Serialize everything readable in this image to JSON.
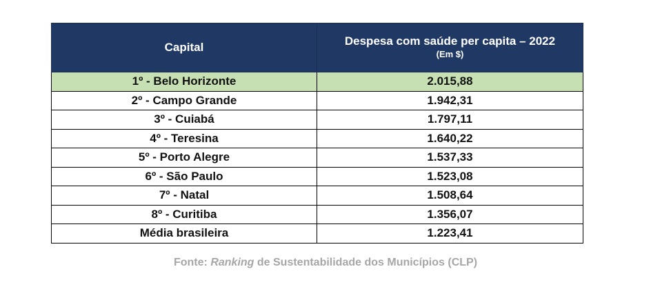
{
  "table": {
    "header": {
      "col1": "Capital",
      "col2": "Despesa com saúde per capita – 2022",
      "col2_sub": "(Em $)"
    },
    "rows": [
      {
        "capital": "1º - Belo Horizonte",
        "value": "2.015,88",
        "highlight": true
      },
      {
        "capital": "2º - Campo Grande",
        "value": "1.942,31"
      },
      {
        "capital": "3º - Cuiabá",
        "value": "1.797,11"
      },
      {
        "capital": "4º - Teresina",
        "value": "1.640,22"
      },
      {
        "capital": "5º - Porto Alegre",
        "value": "1.537,33"
      },
      {
        "capital": "6º - São Paulo",
        "value": "1.523,08"
      },
      {
        "capital": "7º - Natal",
        "value": "1.508,64"
      },
      {
        "capital": "8º - Curitiba",
        "value": "1.356,07"
      },
      {
        "capital": "Média brasileira",
        "value": "1.223,41"
      }
    ]
  },
  "source": {
    "prefix": "Fonte: ",
    "italic": "Ranking",
    "suffix": " de Sustentabilidade dos Municípios (CLP)"
  },
  "colors": {
    "header_bg": "#203864",
    "highlight_bg": "#c6e0b4",
    "source_text": "#a6a6a6"
  }
}
